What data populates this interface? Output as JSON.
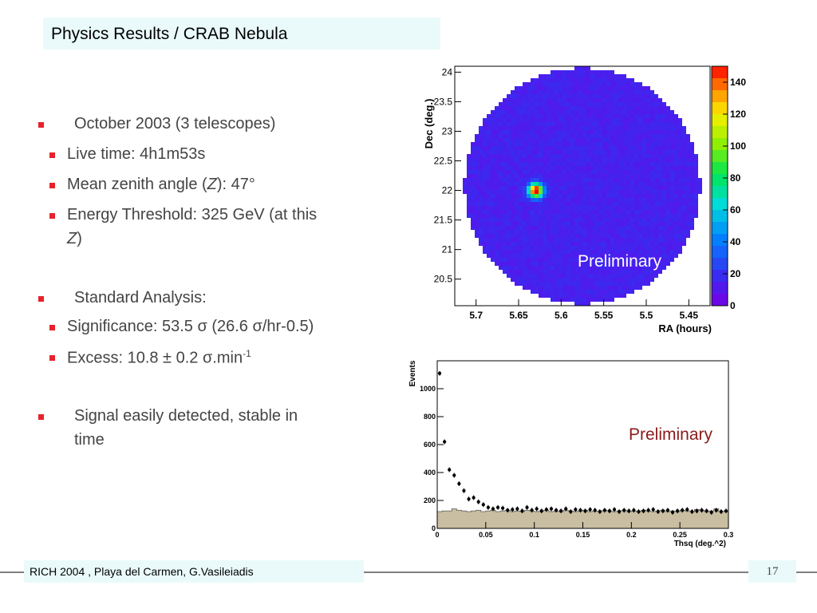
{
  "title": "Physics Results / CRAB Nebula",
  "bullets": {
    "b1": "October 2003 (3 telescopes)",
    "b1_1": "Live time: 4h1m53s",
    "b1_2_pre": "Mean zenith angle (",
    "b1_2_z": "Z",
    "b1_2_post": "): 47°",
    "b1_3_line1": "Energy Threshold: 325 GeV (at this",
    "b1_3_z": "Z",
    "b1_3_post": ")",
    "b2": "Standard Analysis:",
    "b2_1_pre": "Significance: 53.5 ",
    "b2_1_sigma": "σ",
    "b2_1_mid": " (26.6 ",
    "b2_1_sigma2": "σ",
    "b2_1_post": "/hr-0.5)",
    "b2_2_pre": "Excess: 10.8 ± 0.2 ",
    "b2_2_sigma": "σ",
    "b2_2_post": ".min",
    "b2_2_sup": "-1",
    "b3_line1": "Signal easily detected, stable in",
    "b3_line2": "time"
  },
  "preliminary_skymap": "Preliminary",
  "preliminary_histogram": "Preliminary",
  "footer": {
    "text": "RICH 2004 , Playa del Carmen, G.Vasileiadis",
    "page": "17"
  },
  "colors": {
    "bullet": "#e8212b",
    "title_bg": "#eafafa",
    "skymap_fill": "#4a3cf0",
    "hist_fill": "#c9bea1",
    "prelim_hist": "#8b1a1a"
  },
  "chart_data": [
    {
      "type": "heatmap",
      "xlabel": "RA (hours)",
      "ylabel": "Dec (deg.)",
      "x_ticks": [
        "5.7",
        "5.65",
        "5.6",
        "5.55",
        "5.5",
        "5.45"
      ],
      "y_ticks": [
        "24",
        "23.5",
        "23",
        "22.5",
        "22",
        "21.5",
        "21",
        "20.5"
      ],
      "colorbar_ticks": [
        "140",
        "120",
        "100",
        "80",
        "60",
        "40",
        "20",
        "0"
      ],
      "colorbar_range": [
        0,
        150
      ],
      "hotspot": {
        "ra": 5.63,
        "dec": 22.0,
        "peak": 150
      },
      "background_level": 15
    },
    {
      "type": "scatter",
      "xlabel": "Thsq (deg.^2)",
      "ylabel": "Events",
      "xlim": [
        0,
        0.3
      ],
      "ylim": [
        0,
        1200
      ],
      "x_ticks": [
        "0",
        "0.05",
        "0.1",
        "0.15",
        "0.2",
        "0.25",
        "0.3"
      ],
      "y_ticks": [
        "0",
        "200",
        "400",
        "600",
        "800",
        "1000"
      ],
      "on_points": {
        "x": [
          0.0025,
          0.0075,
          0.0125,
          0.0175,
          0.0225,
          0.0275,
          0.0325,
          0.0375,
          0.0425,
          0.0475,
          0.0525,
          0.0575,
          0.0625,
          0.0675,
          0.0725,
          0.0775,
          0.0825,
          0.0875,
          0.0925,
          0.0975,
          0.1025,
          0.1075,
          0.1125,
          0.1175,
          0.1225,
          0.1275,
          0.1325,
          0.1375,
          0.1425,
          0.1475,
          0.1525,
          0.1575,
          0.1625,
          0.1675,
          0.1725,
          0.1775,
          0.1825,
          0.1875,
          0.1925,
          0.1975,
          0.2025,
          0.2075,
          0.2125,
          0.2175,
          0.2225,
          0.2275,
          0.2325,
          0.2375,
          0.2425,
          0.2475,
          0.2525,
          0.2575,
          0.2625,
          0.2675,
          0.2725,
          0.2775,
          0.2825,
          0.2875,
          0.2925,
          0.2975
        ],
        "y": [
          1110,
          620,
          420,
          380,
          320,
          270,
          210,
          220,
          190,
          170,
          150,
          140,
          150,
          145,
          130,
          135,
          140,
          125,
          150,
          130,
          140,
          125,
          135,
          140,
          130,
          125,
          140,
          120,
          135,
          130,
          125,
          135,
          130,
          120,
          130,
          125,
          135,
          120,
          130,
          125,
          130,
          120,
          125,
          130,
          135,
          120,
          125,
          130,
          115,
          125,
          130,
          135,
          120,
          125,
          130,
          125,
          115,
          130,
          120,
          125
        ]
      },
      "off_histogram": {
        "bin_width": 0.005,
        "values": [
          120,
          125,
          125,
          140,
          130,
          125,
          120,
          125,
          130,
          120,
          125,
          130,
          120,
          125,
          130,
          120,
          125,
          120,
          130,
          125,
          120,
          125,
          130,
          120,
          125,
          120,
          130,
          125,
          120,
          125,
          130,
          120,
          125,
          120,
          130,
          125,
          120,
          125,
          130,
          120,
          125,
          120,
          130,
          125,
          120,
          125,
          130,
          120,
          125,
          120,
          130,
          125,
          120,
          135,
          130,
          120,
          125,
          140,
          120,
          125
        ]
      }
    }
  ]
}
